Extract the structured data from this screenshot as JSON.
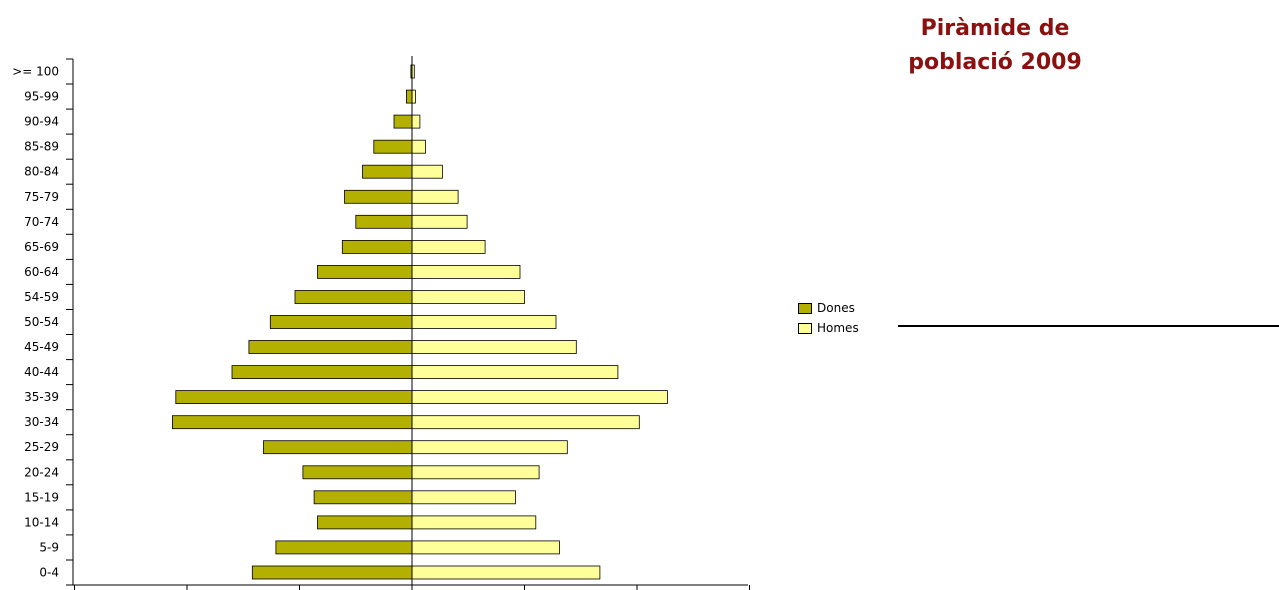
{
  "chart_data": {
    "type": "bar",
    "orientation": "horizontal",
    "title": "Piràmide de població 2009",
    "title_lines": [
      "Piràmide de",
      "població 2009"
    ],
    "categories": [
      "0-4",
      "5-9",
      "10-14",
      "15-19",
      "20-24",
      "25-29",
      "30-34",
      "35-39",
      "40-44",
      "45-49",
      "50-54",
      "54-59",
      "60-64",
      "65-69",
      "70-74",
      "75-79",
      "80-84",
      "85-89",
      "90-94",
      "95-99",
      ">= 100"
    ],
    "series": [
      {
        "name": "Dones",
        "color": "#b3b000",
        "values": [
          -142,
          -121,
          -84,
          -87,
          -97,
          -132,
          -213,
          -210,
          -160,
          -145,
          -126,
          -104,
          -84,
          -62,
          -50,
          -60,
          -44,
          -34,
          -16,
          -5,
          -1
        ]
      },
      {
        "name": "Homes",
        "color": "#ffff99",
        "values": [
          167,
          131,
          110,
          92,
          113,
          138,
          202,
          227,
          183,
          146,
          128,
          100,
          96,
          65,
          49,
          41,
          27,
          12,
          7,
          3,
          2
        ]
      }
    ],
    "xlim": [
      -300,
      300
    ],
    "x_ticks": [
      -300,
      -200,
      -100,
      0,
      100,
      200,
      300
    ],
    "legend_position": "right",
    "grid": false
  },
  "colors": {
    "title": "#8b1010",
    "dones": "#b3b000",
    "homes": "#ffff99",
    "outline": "#000000"
  }
}
